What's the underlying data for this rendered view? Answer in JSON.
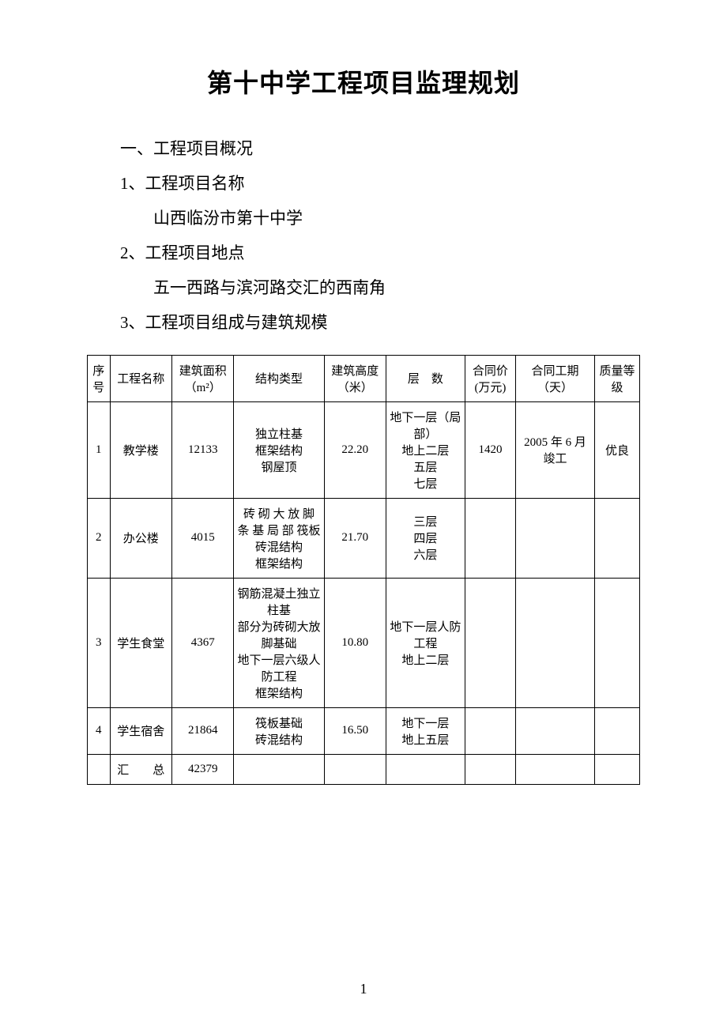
{
  "title": "第十中学工程项目监理规划",
  "section_heading": "一、工程项目概况",
  "item1_label": "1、工程项目名称",
  "item1_value": "山西临汾市第十中学",
  "item2_label": "2、工程项目地点",
  "item2_value": "五一西路与滨河路交汇的西南角",
  "item3_label": "3、工程项目组成与建筑规模",
  "table": {
    "headers": {
      "seq": "序号",
      "name": "工程名称",
      "area": "建筑面积（m²）",
      "struct": "结构类型",
      "height": "建筑高度（米）",
      "floors": "层　数",
      "price": "合同价(万元)",
      "duration": "合同工期（天）",
      "quality": "质量等级"
    },
    "rows": [
      {
        "seq": "1",
        "name": "教学楼",
        "area": "12133",
        "struct": "独立柱基\n框架结构\n钢屋顶",
        "height": "22.20",
        "floors": "地下一层（局部）\n地上二层\n五层\n七层",
        "price": "1420",
        "duration": "2005 年 6 月竣工",
        "quality": "优良"
      },
      {
        "seq": "2",
        "name": "办公楼",
        "area": "4015",
        "struct": "砖 砌 大 放 脚 条 基 局 部 筏板\n砖混结构\n框架结构",
        "height": "21.70",
        "floors": "三层\n四层\n六层",
        "price": "",
        "duration": "",
        "quality": ""
      },
      {
        "seq": "3",
        "name": "学生食堂",
        "area": "4367",
        "struct": "钢筋混凝土独立柱基\n部分为砖砌大放脚基础\n地下一层六级人防工程\n框架结构",
        "height": "10.80",
        "floors": "地下一层人防工程\n地上二层",
        "price": "",
        "duration": "",
        "quality": ""
      },
      {
        "seq": "4",
        "name": "学生宿舍",
        "area": "21864",
        "struct": "筏板基础\n砖混结构",
        "height": "16.50",
        "floors": "地下一层\n地上五层",
        "price": "",
        "duration": "",
        "quality": ""
      }
    ],
    "total_row": {
      "label": "汇　　总",
      "area": "42379"
    }
  },
  "page_number": "1"
}
